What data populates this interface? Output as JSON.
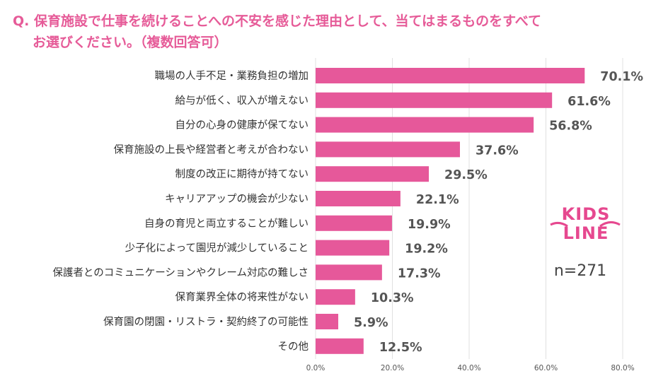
{
  "question": {
    "line1": "Q. 保育施設で仕事を続けることへの不安を感じた理由として、当てはまるものをすべて",
    "line2": "お選びください。（複数回答可）"
  },
  "logo": {
    "line1": "KIDS",
    "line2": "LINE"
  },
  "sample_size": "n=271",
  "colors": {
    "bar": "#e6589a",
    "title": "#e65b98",
    "grid": "#e0e0e0"
  },
  "chart_data": {
    "type": "bar",
    "orientation": "horizontal",
    "categories": [
      "職場の人手不足・業務負担の増加",
      "給与が低く、収入が増えない",
      "自分の心身の健康が保てない",
      "保育施設の上長や経営者と考えが合わない",
      "制度の改正に期待が持てない",
      "キャリアアップの機会が少ない",
      "自身の育児と両立することが難しい",
      "少子化によって園児が減少していること",
      "保護者とのコミュニケーションやクレーム対応の難しさ",
      "保育業界全体の将来性がない",
      "保育園の閉園・リストラ・契約終了の可能性",
      "その他"
    ],
    "values": [
      70.1,
      61.6,
      56.8,
      37.6,
      29.5,
      22.1,
      19.9,
      19.2,
      17.3,
      10.3,
      5.9,
      12.5
    ],
    "value_labels": [
      "70.1%",
      "61.6%",
      "56.8%",
      "37.6%",
      "29.5%",
      "22.1%",
      "19.9%",
      "19.2%",
      "17.3%",
      "10.3%",
      "5.9%",
      "12.5%"
    ],
    "xlim": [
      0,
      80
    ],
    "xticks": [
      0,
      20,
      40,
      60,
      80
    ],
    "xtick_labels": [
      "0.0%",
      "20.0%",
      "40.0%",
      "60.0%",
      "80.0%"
    ],
    "grid": "vertical"
  }
}
